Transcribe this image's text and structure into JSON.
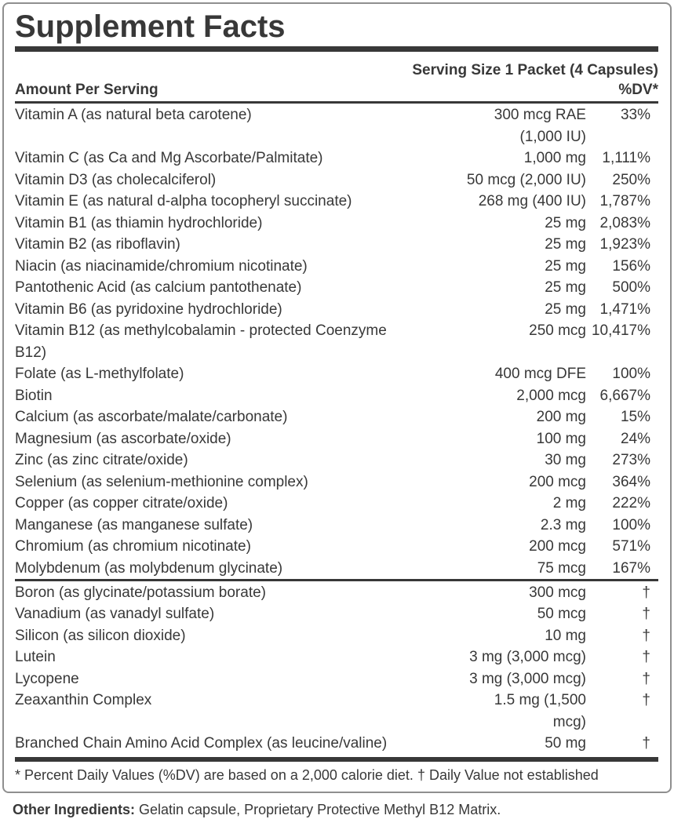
{
  "title": "Supplement Facts",
  "serving_size": "Serving Size 1 Packet (4 Capsules)",
  "columns": {
    "amount_header": "Amount Per Serving",
    "dv_header": "%DV*"
  },
  "main_nutrients": [
    {
      "name": "Vitamin A (as natural beta carotene)",
      "amount": "300 mcg RAE\n(1,000 IU)",
      "dv": "33%"
    },
    {
      "name": "Vitamin C (as Ca and Mg Ascorbate/Palmitate)",
      "amount": "1,000 mg",
      "dv": "1,111%"
    },
    {
      "name": "Vitamin D3 (as cholecalciferol)",
      "amount": "50 mcg (2,000 IU)",
      "dv": "250%"
    },
    {
      "name": "Vitamin E (as natural d-alpha tocopheryl succinate)",
      "amount": "268 mg (400 IU)",
      "dv": "1,787%"
    },
    {
      "name": "Vitamin B1 (as thiamin hydrochloride)",
      "amount": "25 mg",
      "dv": "2,083%"
    },
    {
      "name": "Vitamin B2 (as riboflavin)",
      "amount": "25 mg",
      "dv": "1,923%"
    },
    {
      "name": "Niacin (as niacinamide/chromium nicotinate)",
      "amount": "25 mg",
      "dv": "156%"
    },
    {
      "name": "Pantothenic Acid (as calcium pantothenate)",
      "amount": "25 mg",
      "dv": "500%"
    },
    {
      "name": "Vitamin B6 (as pyridoxine hydrochloride)",
      "amount": "25 mg",
      "dv": "1,471%"
    },
    {
      "name": "Vitamin B12 (as methylcobalamin - protected Coenzyme\nB12)",
      "amount": "250 mcg",
      "dv": "10,417%"
    },
    {
      "name": "Folate (as L-methylfolate)",
      "amount": "400 mcg DFE",
      "dv": "100%"
    },
    {
      "name": "Biotin",
      "amount": "2,000 mcg",
      "dv": "6,667%"
    },
    {
      "name": "Calcium (as ascorbate/malate/carbonate)",
      "amount": "200 mg",
      "dv": "15%"
    },
    {
      "name": "Magnesium (as ascorbate/oxide)",
      "amount": "100 mg",
      "dv": "24%"
    },
    {
      "name": "Zinc (as zinc citrate/oxide)",
      "amount": "30 mg",
      "dv": "273%"
    },
    {
      "name": "Selenium (as selenium-methionine complex)",
      "amount": "200 mcg",
      "dv": "364%"
    },
    {
      "name": "Copper (as copper citrate/oxide)",
      "amount": "2 mg",
      "dv": "222%"
    },
    {
      "name": "Manganese (as manganese sulfate)",
      "amount": "2.3 mg",
      "dv": "100%"
    },
    {
      "name": "Chromium (as chromium nicotinate)",
      "amount": "200 mcg",
      "dv": "571%"
    },
    {
      "name": "Molybdenum (as molybdenum glycinate)",
      "amount": "75 mcg",
      "dv": "167%"
    }
  ],
  "other_nutrients": [
    {
      "name": "Boron (as glycinate/potassium borate)",
      "amount": "300 mcg",
      "dv": "†"
    },
    {
      "name": "Vanadium (as vanadyl sulfate)",
      "amount": "50 mcg",
      "dv": "†"
    },
    {
      "name": "Silicon (as silicon dioxide)",
      "amount": "10 mg",
      "dv": "†"
    },
    {
      "name": "Lutein",
      "amount": "3 mg (3,000 mcg)",
      "dv": "†"
    },
    {
      "name": "Lycopene",
      "amount": "3 mg (3,000 mcg)",
      "dv": "†"
    },
    {
      "name": "Zeaxanthin Complex",
      "amount": "1.5 mg (1,500\nmcg)",
      "dv": "†"
    },
    {
      "name": "Branched Chain Amino Acid Complex (as leucine/valine)",
      "amount": "50 mg",
      "dv": "†"
    }
  ],
  "footnote": "* Percent Daily Values (%DV) are based on a 2,000 calorie diet. † Daily Value not established",
  "other_ingredients_label": "Other Ingredients:",
  "other_ingredients_text": " Gelatin capsule, Proprietary Protective Methyl B12 Matrix.",
  "colors": {
    "text": "#383838",
    "border": "#8f8f8f",
    "bar": "#383838"
  }
}
